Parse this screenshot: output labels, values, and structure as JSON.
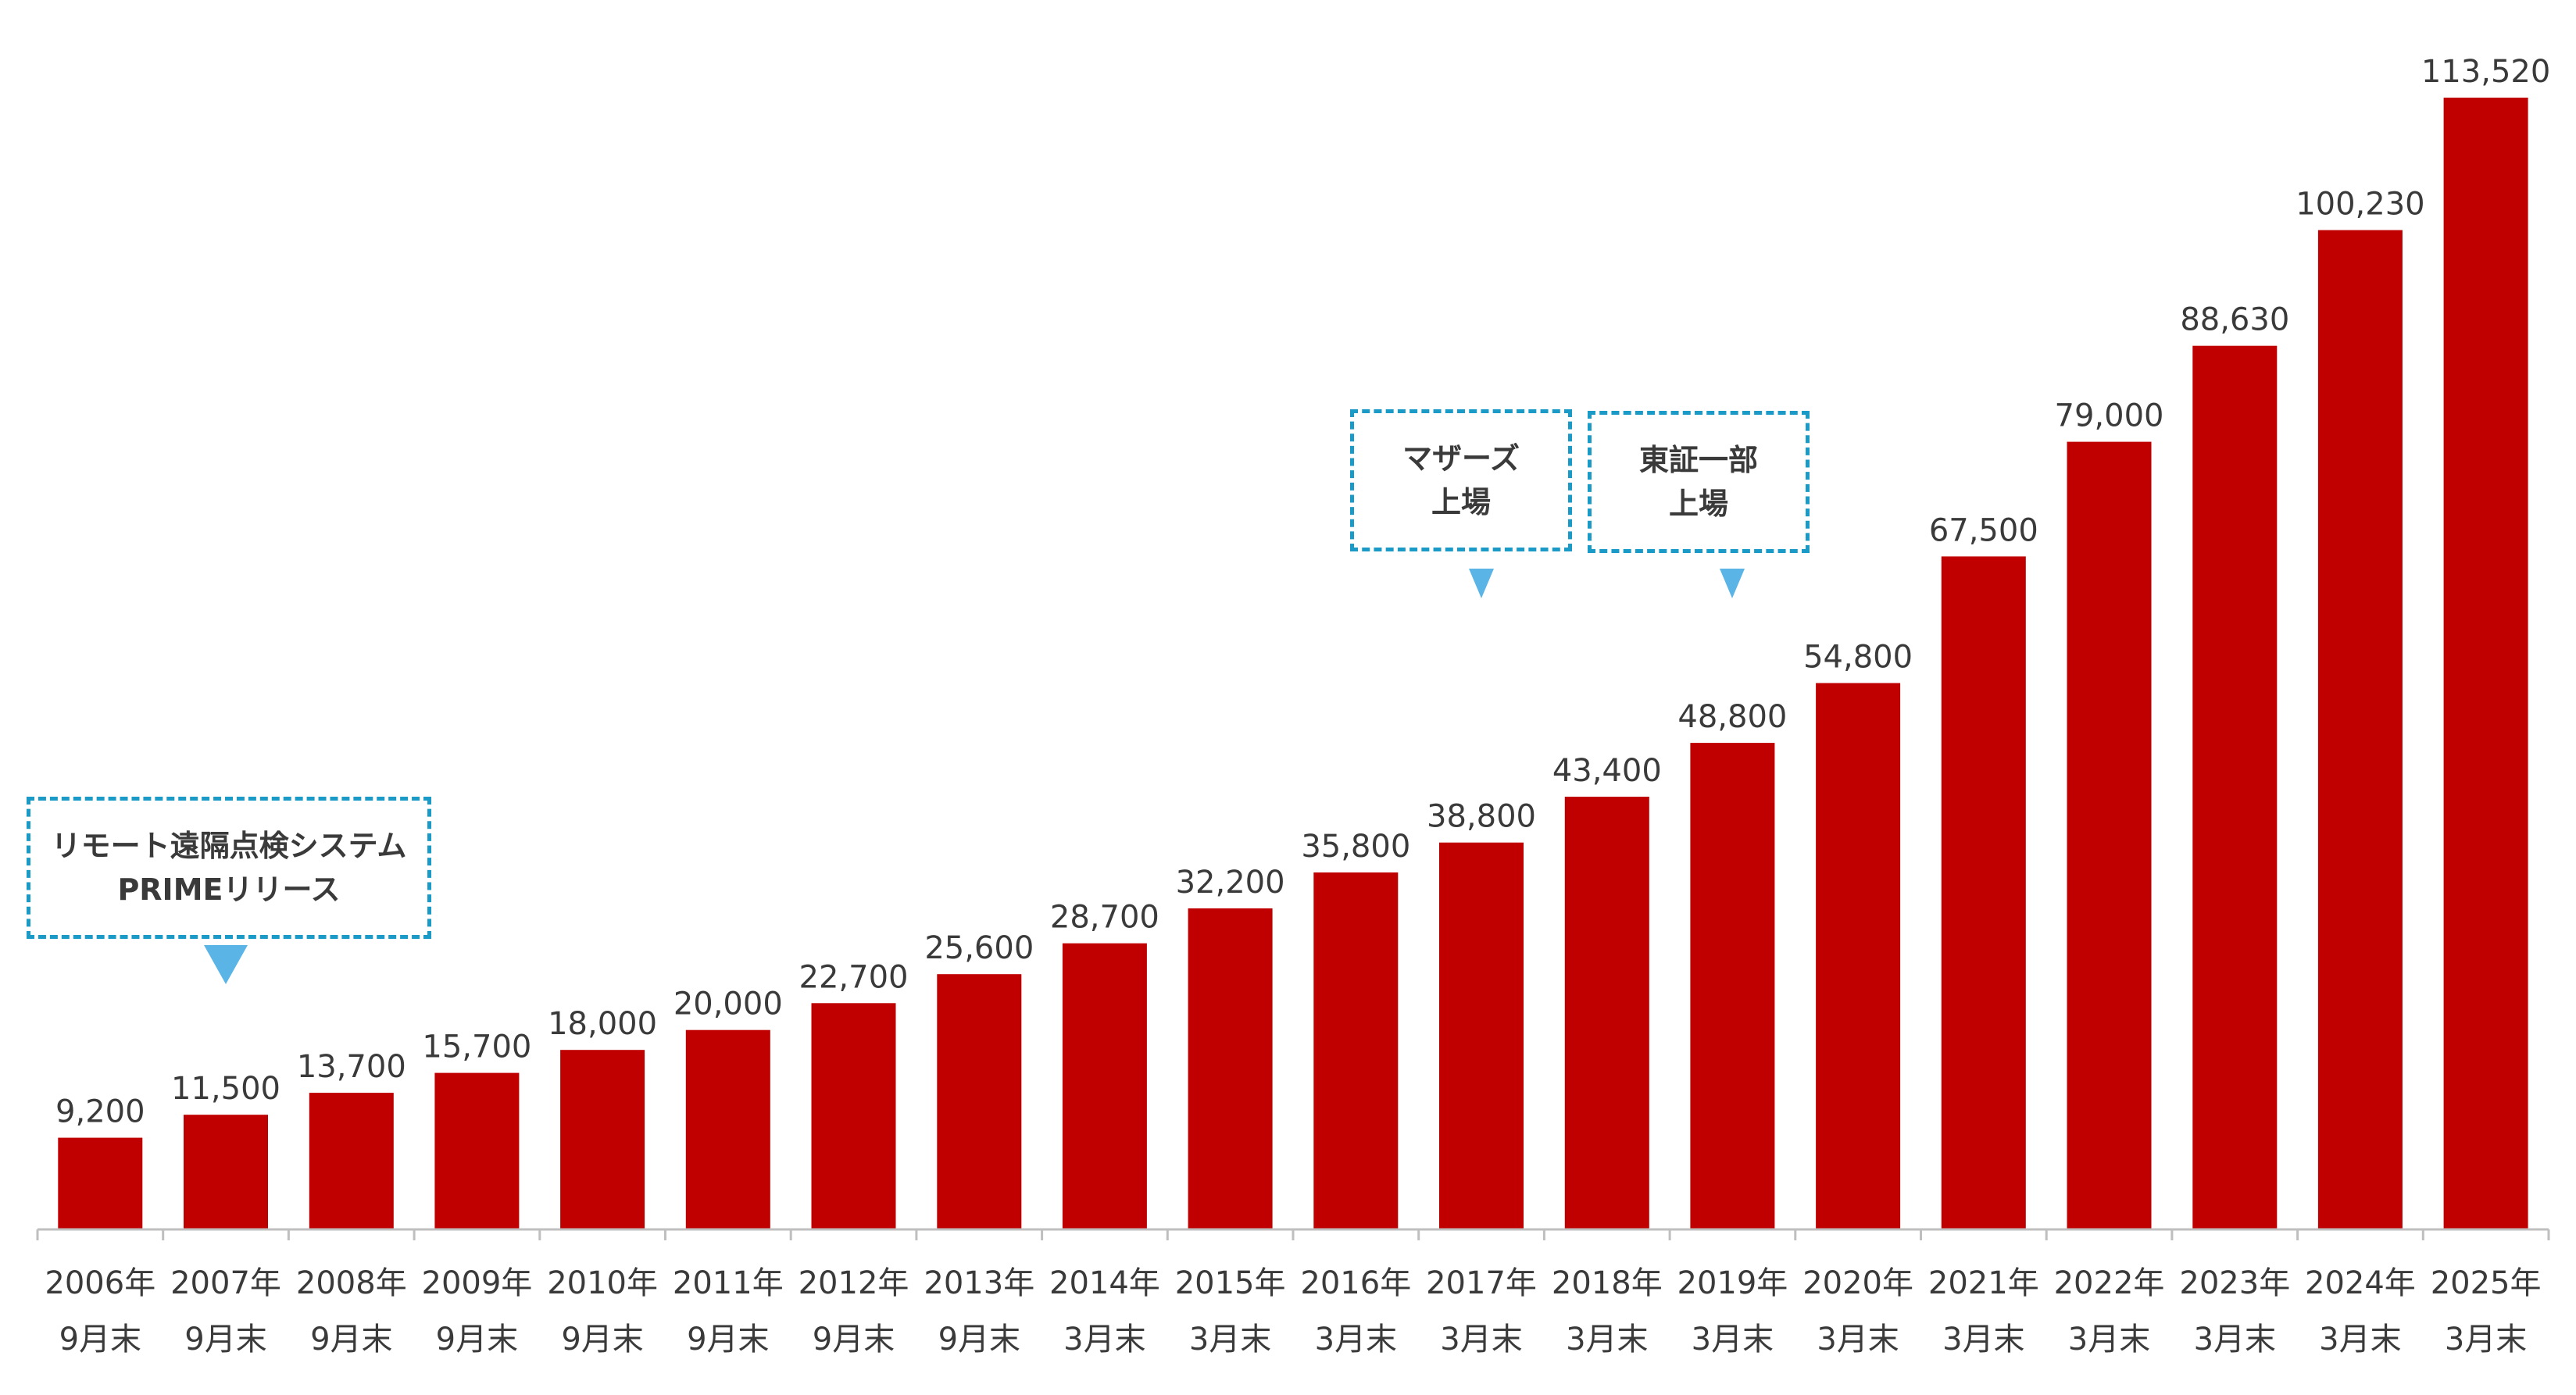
{
  "colors": {
    "bar": "#c00000",
    "callout_border": "#1a9bc7",
    "pointer": "#5ab4e6",
    "text": "#3a3a3a",
    "axis": "#bfbfbf"
  },
  "chart_data": {
    "type": "bar",
    "categories": [
      [
        "2006年",
        "9月末"
      ],
      [
        "2007年",
        "9月末"
      ],
      [
        "2008年",
        "9月末"
      ],
      [
        "2009年",
        "9月末"
      ],
      [
        "2010年",
        "9月末"
      ],
      [
        "2011年",
        "9月末"
      ],
      [
        "2012年",
        "9月末"
      ],
      [
        "2013年",
        "9月末"
      ],
      [
        "2014年",
        "3月末"
      ],
      [
        "2015年",
        "3月末"
      ],
      [
        "2016年",
        "3月末"
      ],
      [
        "2017年",
        "3月末"
      ],
      [
        "2018年",
        "3月末"
      ],
      [
        "2019年",
        "3月末"
      ],
      [
        "2020年",
        "3月末"
      ],
      [
        "2021年",
        "3月末"
      ],
      [
        "2022年",
        "3月末"
      ],
      [
        "2023年",
        "3月末"
      ],
      [
        "2024年",
        "3月末"
      ],
      [
        "2025年",
        "3月末"
      ]
    ],
    "values": [
      9200,
      11500,
      13700,
      15700,
      18000,
      20000,
      22700,
      25600,
      28700,
      32200,
      35800,
      38800,
      43400,
      48800,
      54800,
      67500,
      79000,
      88630,
      100230,
      113520
    ],
    "value_labels": [
      "9,200",
      "11,500",
      "13,700",
      "15,700",
      "18,000",
      "20,000",
      "22,700",
      "25,600",
      "28,700",
      "32,200",
      "35,800",
      "38,800",
      "43,400",
      "48,800",
      "54,800",
      "67,500",
      "79,000",
      "88,630",
      "100,230",
      "113,520"
    ],
    "ylim": [
      0,
      120000
    ],
    "grid": false,
    "legend": "none",
    "annotations": [
      {
        "lines": [
          "リモート遠隔点検システム",
          "PRIMEリリース"
        ],
        "category_index": 1
      },
      {
        "lines": [
          "マザーズ",
          "上場"
        ],
        "category_index": 11
      },
      {
        "lines": [
          "東証一部",
          "上場"
        ],
        "category_index": 13
      }
    ]
  }
}
